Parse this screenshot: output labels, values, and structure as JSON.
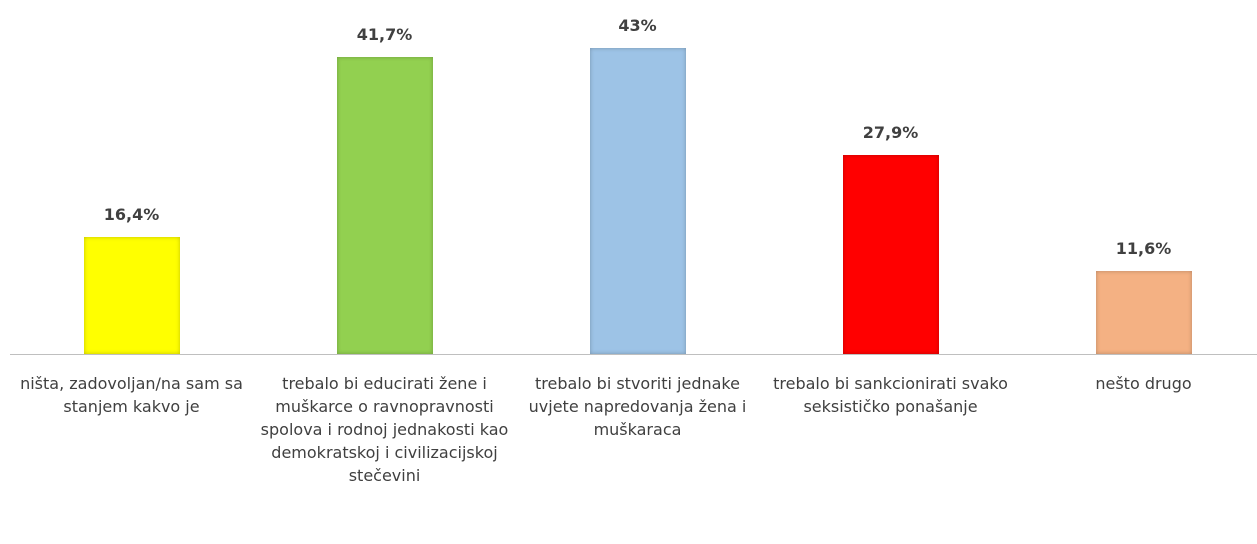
{
  "chart_data": {
    "type": "bar",
    "categories": [
      "ništa, zadovoljan/na sam sa stanjem kakvo je",
      "trebalo bi educirati žene i muškarce o ravnopravnosti spolova i rodnoj jednakosti kao demokratskoj i civilizacijskoj stečevini",
      "trebalo bi stvoriti jednake uvjete napredovanja žena i muškaraca",
      "trebalo bi sankcionirati svako seksističko ponašanje",
      "nešto drugo"
    ],
    "values": [
      16.4,
      41.7,
      43,
      27.9,
      11.6
    ],
    "value_labels": [
      "16,4%",
      "41,7%",
      "43%",
      "27,9%",
      "11,6%"
    ],
    "colors": [
      "#ffff00",
      "#92d050",
      "#9dc3e6",
      "#ff0000",
      "#f4b183"
    ]
  }
}
